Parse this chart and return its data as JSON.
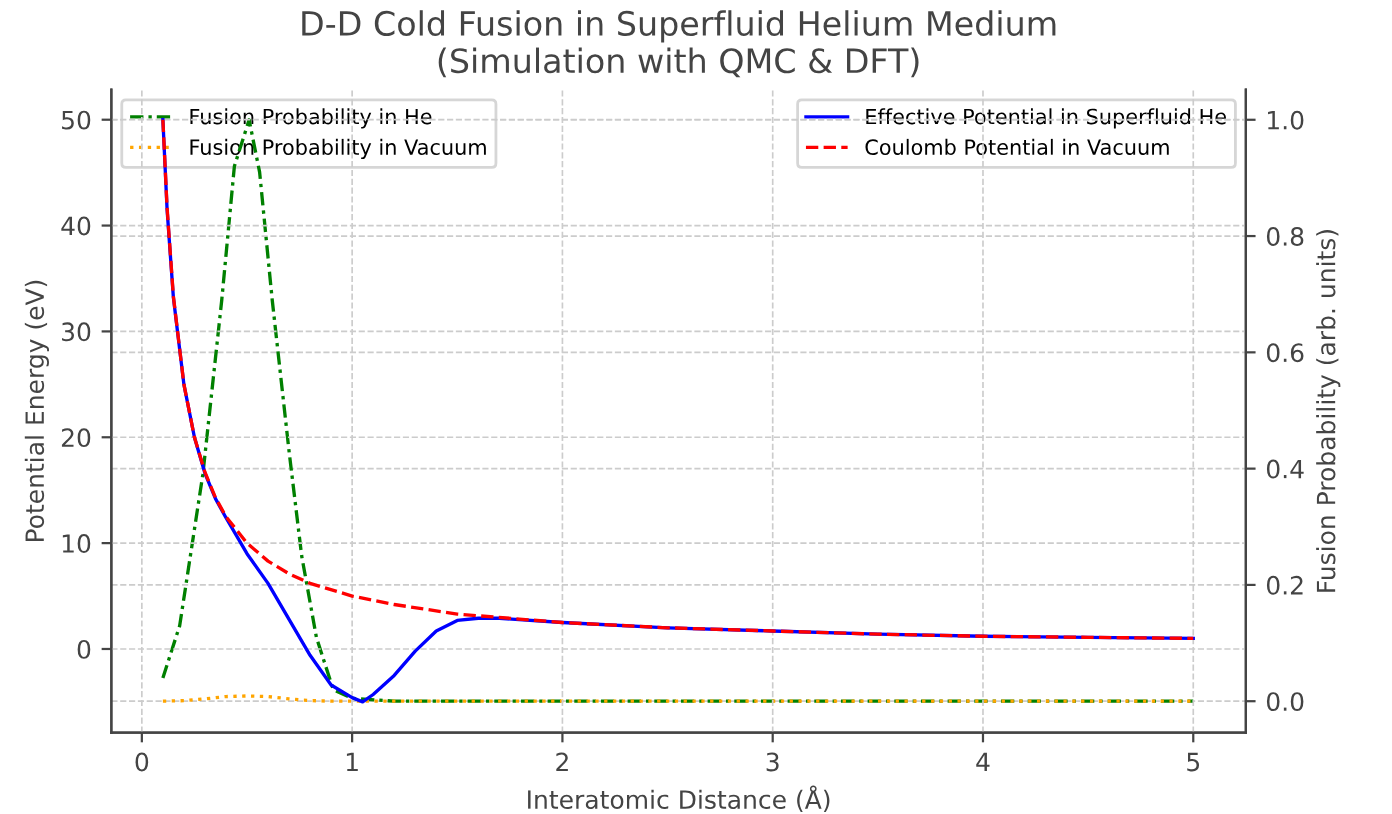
{
  "chart_data": {
    "type": "line",
    "title": "D-D Cold Fusion in Superfluid Helium Medium\n(Simulation with QMC & DFT)",
    "xlabel": "Interatomic Distance (Å)",
    "ylabel": "Potential Energy (eV)",
    "y2label": "Fusion Probability (arb. units)",
    "xlim": [
      -0.145,
      5.25
    ],
    "xticks": [
      0,
      1,
      2,
      3,
      4,
      5
    ],
    "ylim": [
      -7.9,
      52.85
    ],
    "yticks": [
      0,
      10,
      20,
      30,
      40,
      50
    ],
    "y2lim": [
      -0.054,
      1.052
    ],
    "y2ticks": [
      {
        "value": 0,
        "label": "0.0"
      },
      0.2,
      0.4,
      0.6,
      0.8,
      {
        "value": 1,
        "label": "1.0"
      }
    ],
    "grid": true,
    "legend": "top",
    "series": [
      {
        "name": "Effective Potential in Superfluid He",
        "color": "#0000ff",
        "line_style": "solid",
        "x": [
          0.1,
          0.12,
          0.15,
          0.2,
          0.25,
          0.3,
          0.35,
          0.4,
          0.45,
          0.5,
          0.6,
          0.7,
          0.8,
          0.9,
          1.0,
          1.05,
          1.1,
          1.2,
          1.3,
          1.4,
          1.5,
          1.6,
          1.7,
          2.0,
          2.5,
          3.0,
          3.5,
          4.0,
          4.5,
          5.0
        ],
        "values": [
          50,
          41.5,
          33.2,
          25,
          20,
          16.6,
          14.2,
          12.4,
          10.7,
          9.0,
          6.2,
          2.8,
          -0.6,
          -3.4,
          -4.6,
          -5.0,
          -4.3,
          -2.5,
          -0.2,
          1.7,
          2.7,
          2.9,
          2.9,
          2.5,
          2.0,
          1.7,
          1.4,
          1.2,
          1.1,
          1.0
        ]
      },
      {
        "name": "Coulomb Potential in Vacuum",
        "color": "#ff0000",
        "line_style": "dashed",
        "x": [
          0.1,
          0.12,
          0.15,
          0.2,
          0.25,
          0.3,
          0.35,
          0.4,
          0.5,
          0.6,
          0.7,
          0.8,
          1.0,
          1.2,
          1.5,
          2.0,
          2.5,
          3.0,
          3.5,
          4.0,
          4.5,
          5.0
        ],
        "values": [
          50,
          41.7,
          33.3,
          25,
          20,
          16.7,
          14.3,
          12.5,
          10,
          8.3,
          7.1,
          6.2,
          5,
          4.2,
          3.3,
          2.5,
          2.0,
          1.7,
          1.4,
          1.2,
          1.1,
          1.0
        ]
      },
      {
        "name": "Fusion Probability in He",
        "color": "#008000",
        "line_style": "dashdot",
        "axis": "y2",
        "x": [
          0.1,
          0.18,
          0.29,
          0.38,
          0.44,
          0.51,
          0.56,
          0.62,
          0.7,
          0.76,
          0.83,
          0.91,
          1.0,
          1.2,
          2.0,
          3.0,
          4.0,
          5.0
        ],
        "values": [
          0.04,
          0.13,
          0.39,
          0.69,
          0.92,
          1.0,
          0.91,
          0.69,
          0.43,
          0.25,
          0.11,
          0.02,
          0.005,
          0.0,
          0.0,
          0.0,
          0.0,
          0.0
        ]
      },
      {
        "name": "Fusion Probability in Vacuum",
        "color": "#ffa500",
        "line_style": "dotted",
        "axis": "y2",
        "x": [
          0.1,
          0.2,
          0.3,
          0.4,
          0.5,
          0.6,
          0.7,
          0.8,
          0.9,
          1.0,
          2.0,
          3.0,
          4.0,
          5.0
        ],
        "values": [
          0.0,
          0.001,
          0.004,
          0.008,
          0.009,
          0.008,
          0.004,
          0.001,
          0.0,
          0.0,
          0.0,
          0.0,
          0.0,
          0.0
        ]
      }
    ]
  }
}
